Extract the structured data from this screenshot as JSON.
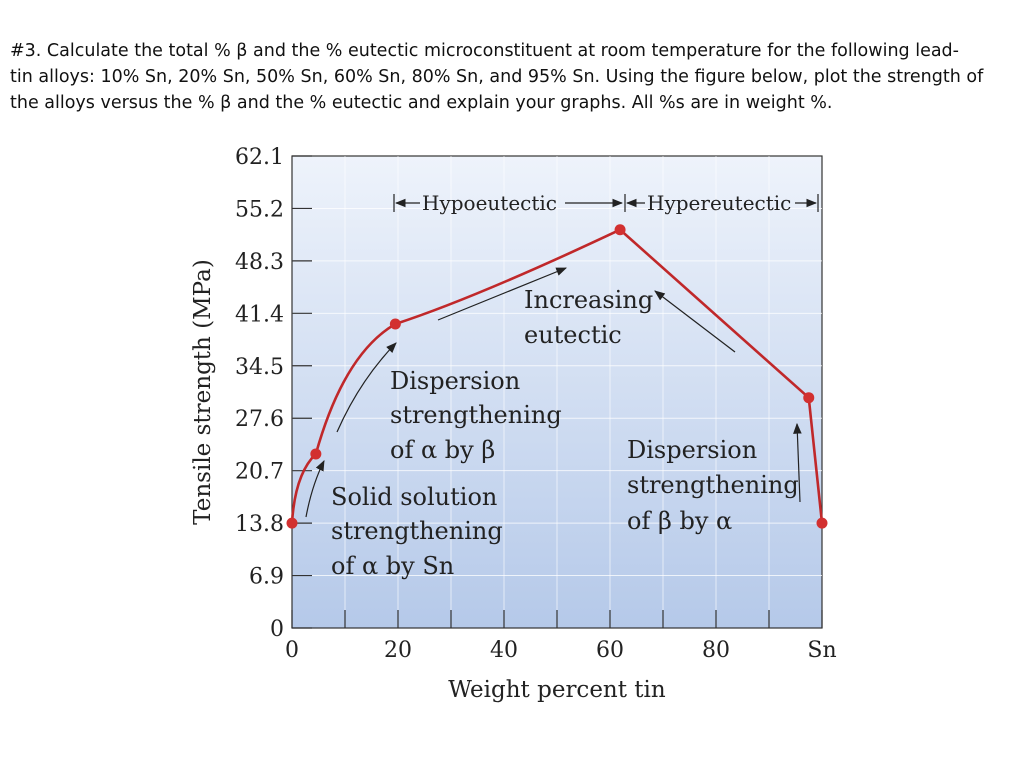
{
  "question": {
    "line1": "#3. Calculate the total % β and the % eutectic microconstituent at room temperature for the following lead-",
    "line2": "tin alloys: 10% Sn, 20% Sn, 50% Sn, 60% Sn, 80% Sn, and 95% Sn. Using the figure below, plot the strength of",
    "line3": "the alloys versus the % β and the % eutectic and explain your graphs.  All %s are in weight %."
  },
  "chart_data": {
    "type": "line",
    "xlabel": "Weight percent tin",
    "ylabel": "Tensile strength (MPa)",
    "xlim": [
      0,
      100
    ],
    "ylim": [
      0,
      62.1
    ],
    "x_ticks": [
      "0",
      "20",
      "40",
      "60",
      "80",
      "Sn"
    ],
    "x_tick_values": [
      0,
      20,
      40,
      60,
      80,
      100
    ],
    "y_ticks": [
      "0",
      "6.9",
      "13.8",
      "20.7",
      "27.6",
      "34.5",
      "41.4",
      "48.3",
      "55.2",
      "62.1"
    ],
    "y_tick_values": [
      0,
      6.9,
      13.8,
      20.7,
      27.6,
      34.5,
      41.4,
      48.3,
      55.2,
      62.1
    ],
    "series": [
      {
        "x": [
          0,
          4.5,
          19.5,
          61.9,
          97.5,
          100
        ],
        "y": [
          13.8,
          22.9,
          40.0,
          52.4,
          30.3,
          13.8
        ]
      }
    ],
    "annotations": {
      "hypo": "Hypoeutectic",
      "hyper": "Hypereutectic",
      "inc1": "Increasing",
      "inc2": "eutectic",
      "disp_a1": "Dispersion",
      "disp_a2": "strengthening",
      "disp_a3": "of α by β",
      "solid1": "Solid solution",
      "solid2": "strengthening",
      "solid3": "of α by Sn",
      "disp_b1": "Dispersion",
      "disp_b2": "strengthening",
      "disp_b3": "of β by α"
    },
    "colors": {
      "line": "#c0282a",
      "point": "#d23030",
      "bg_top": "#eef3fb",
      "bg_bottom": "#b7cbea"
    },
    "grid": true
  }
}
